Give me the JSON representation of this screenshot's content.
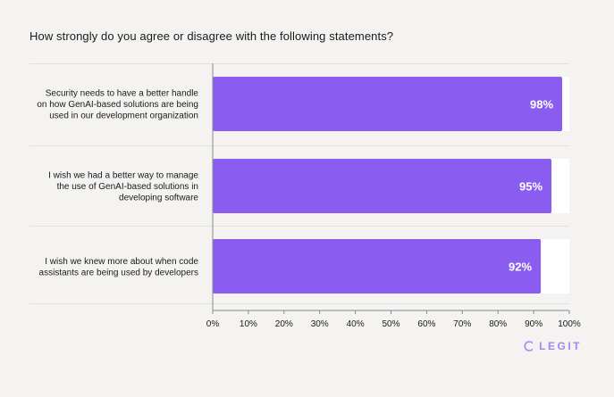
{
  "chart_data": {
    "type": "bar",
    "orientation": "horizontal",
    "title": "How strongly do you agree or disagree with the following statements?",
    "categories": [
      [
        "Security needs to have a better handle",
        "on how GenAI-based solutions are being",
        "used in our development organization"
      ],
      [
        "I wish we had a better way to manage",
        "the use of GenAI-based solutions in",
        "developing software"
      ],
      [
        "I wish we knew more about when code",
        "assistants are being used by developers"
      ]
    ],
    "values": [
      98,
      95,
      92
    ],
    "data_labels": [
      "98%",
      "95%",
      "92%"
    ],
    "xlim": [
      0,
      100
    ],
    "xticks": [
      "0%",
      "10%",
      "20%",
      "30%",
      "40%",
      "50%",
      "60%",
      "70%",
      "80%",
      "90%",
      "100%"
    ],
    "grid": false
  },
  "colors": {
    "bar": "#8b5cf0",
    "track": "#ffffff",
    "background": "#f4f3f1",
    "brand": "#a188f2"
  },
  "brand": {
    "name": "LEGIT",
    "icon": "legit-logo-icon"
  }
}
